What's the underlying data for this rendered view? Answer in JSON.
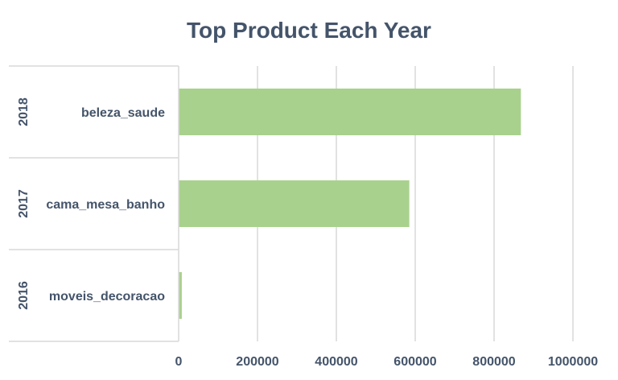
{
  "chart_data": {
    "type": "bar",
    "orientation": "horizontal",
    "title": "Top Product Each Year",
    "categories": [
      {
        "year": "2018",
        "product": "beleza_saude"
      },
      {
        "year": "2017",
        "product": "cama_mesa_banho"
      },
      {
        "year": "2016",
        "product": "moveis_decoracao"
      }
    ],
    "values": [
      868000,
      585000,
      8000
    ],
    "xlim": [
      0,
      1000000
    ],
    "xticks": [
      "0",
      "200000",
      "400000",
      "600000",
      "800000",
      "1000000"
    ],
    "grid": true,
    "legend": "none",
    "colors": {
      "bar": "#a9d18e",
      "text": "#44546a",
      "grid": "#d9d9d9"
    }
  }
}
